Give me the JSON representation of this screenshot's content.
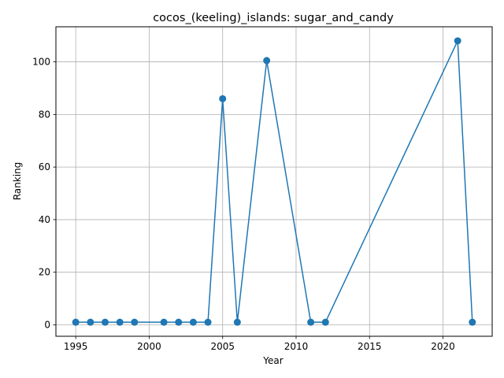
{
  "chart_data": {
    "type": "line",
    "title": "cocos_(keeling)_islands: sugar_and_candy",
    "xlabel": "Year",
    "ylabel": "Ranking",
    "xlim": [
      1993.65,
      2023.35
    ],
    "ylim": [
      -4.35,
      113.35
    ],
    "xticks": [
      1995,
      2000,
      2005,
      2010,
      2015,
      2020
    ],
    "yticks": [
      0,
      20,
      40,
      60,
      80,
      100
    ],
    "grid": true,
    "color": "#1f77b4",
    "series": [
      {
        "x": [
          1995,
          1996,
          1997,
          1998,
          1999,
          2001,
          2002,
          2003,
          2004,
          2005,
          2006,
          2008,
          2011,
          2012,
          2021,
          2022
        ],
        "y": [
          1,
          1,
          1,
          1,
          1,
          1,
          1,
          1,
          1,
          86,
          1,
          100.5,
          1,
          1,
          108,
          1
        ]
      }
    ]
  }
}
